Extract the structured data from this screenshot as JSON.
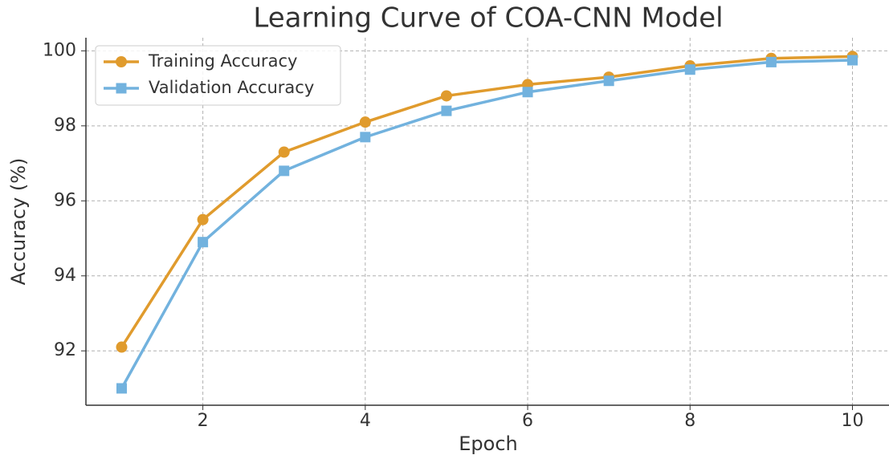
{
  "chart_data": {
    "type": "line",
    "title": "Learning Curve of COA-CNN Model",
    "xlabel": "Epoch",
    "ylabel": "Accuracy (%)",
    "x": [
      1,
      2,
      3,
      4,
      5,
      6,
      7,
      8,
      9,
      10
    ],
    "series": [
      {
        "name": "Training Accuracy",
        "color": "#e09b2d",
        "marker": "circle",
        "values": [
          92.1,
          95.5,
          97.3,
          98.1,
          98.8,
          99.1,
          99.3,
          99.6,
          99.8,
          99.85
        ]
      },
      {
        "name": "Validation Accuracy",
        "color": "#72b2de",
        "marker": "square",
        "values": [
          91.0,
          94.9,
          96.8,
          97.7,
          98.4,
          98.9,
          99.2,
          99.5,
          99.7,
          99.75
        ]
      }
    ],
    "xlim": [
      0.56,
      10.45
    ],
    "xticks": [
      2,
      4,
      6,
      8,
      10
    ],
    "ylim": [
      90.55,
      100.35
    ],
    "yticks": [
      92,
      94,
      96,
      98,
      100
    ],
    "grid": true,
    "legend": "upper left"
  }
}
